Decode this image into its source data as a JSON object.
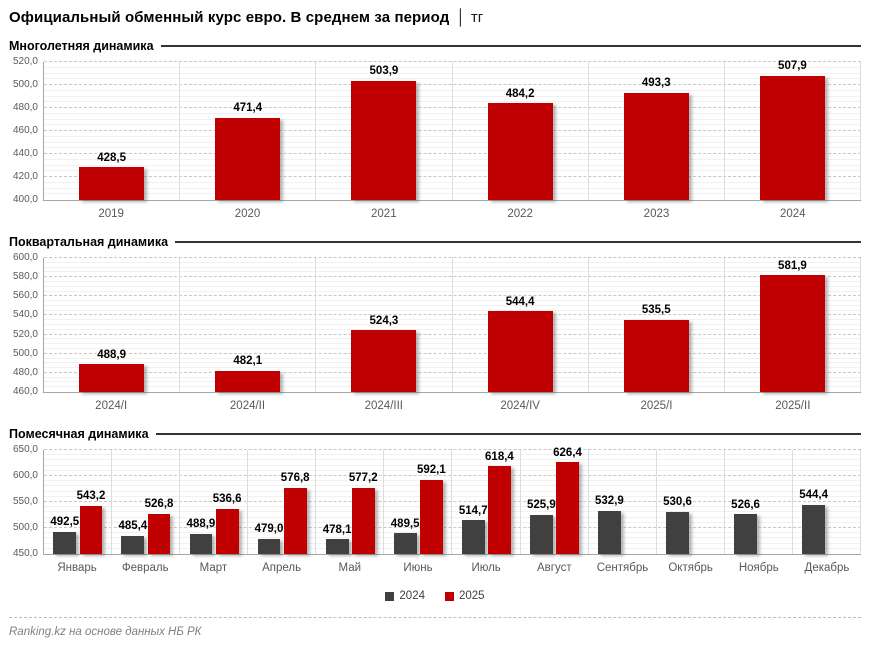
{
  "header": {
    "title": "Официальный обменный курс евро. В среднем за период",
    "separator": "│",
    "unit": "тг"
  },
  "footer": {
    "source": "Ranking.kz на основе данных НБ РК"
  },
  "colors": {
    "accent_red": "#C00000",
    "accent_gray": "#404040"
  },
  "chart_data": [
    {
      "type": "bar",
      "section_title": "Многолетняя динамика",
      "categories": [
        "2019",
        "2020",
        "2021",
        "2022",
        "2023",
        "2024"
      ],
      "values": [
        428.5,
        471.4,
        503.9,
        484.2,
        493.3,
        507.9
      ],
      "bar_color": "#C00000",
      "ylim": [
        400,
        520
      ],
      "ytick_step": 20,
      "minor_step": 5,
      "grid": true,
      "legend": false
    },
    {
      "type": "bar",
      "section_title": "Поквартальная динамика",
      "categories": [
        "2024/I",
        "2024/II",
        "2024/III",
        "2024/IV",
        "2025/I",
        "2025/II"
      ],
      "values": [
        488.9,
        482.1,
        524.3,
        544.4,
        535.5,
        581.9
      ],
      "bar_color": "#C00000",
      "ylim": [
        460,
        600
      ],
      "ytick_step": 20,
      "minor_step": 5,
      "grid": true,
      "legend": false
    },
    {
      "type": "bar",
      "section_title": "Помесячная динамика",
      "categories": [
        "Январь",
        "Февраль",
        "Март",
        "Апрель",
        "Май",
        "Июнь",
        "Июль",
        "Август",
        "Сентябрь",
        "Октябрь",
        "Ноябрь",
        "Декабрь"
      ],
      "series": [
        {
          "name": "2024",
          "color": "#404040",
          "values": [
            492.5,
            485.4,
            488.9,
            479.0,
            478.1,
            489.5,
            514.7,
            525.9,
            532.9,
            530.6,
            526.6,
            544.4
          ]
        },
        {
          "name": "2025",
          "color": "#C00000",
          "values": [
            543.2,
            526.8,
            536.6,
            576.8,
            577.2,
            592.1,
            618.4,
            626.4,
            null,
            null,
            null,
            null
          ]
        }
      ],
      "ylim": [
        450,
        650
      ],
      "ytick_step": 50,
      "minor_step": 10,
      "grid": true,
      "legend": true,
      "legend_position": "bottom"
    }
  ]
}
